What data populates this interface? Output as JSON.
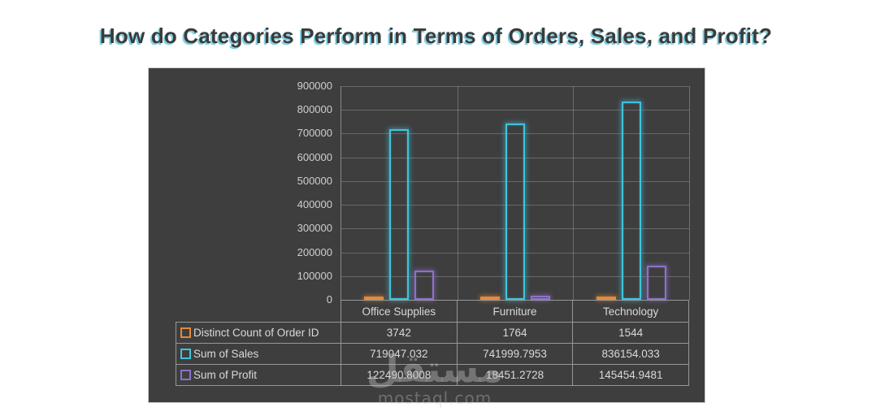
{
  "page": {
    "title": "How do Categories Perform in Terms of Orders, Sales, and Profit?"
  },
  "watermark": {
    "arabic": "مستقل",
    "domain": "mostaql.com"
  },
  "colors": {
    "chart_background": "#3E3E3E",
    "title_text": "#3B3B3B",
    "title_shadow": "#7FD1E4",
    "axis_text": "#CFCFCF",
    "table_text": "#D9D9D9",
    "table_border": "#979797",
    "series_orders": "#E38A3E",
    "series_sales": "#41C3DB",
    "series_profit": "#8D71C9"
  },
  "chart_data": {
    "type": "bar",
    "title": "How do Categories Perform in Terms of Orders, Sales, and Profit?",
    "categories": [
      "Office Supplies",
      "Furniture",
      "Technology"
    ],
    "series": [
      {
        "name": "Distinct Count of Order ID",
        "color": "#E38A3E",
        "values": [
          3742,
          1764,
          1544
        ],
        "labels": [
          "3742",
          "1764",
          "1544"
        ]
      },
      {
        "name": "Sum of Sales",
        "color": "#41C3DB",
        "values": [
          719047.032,
          741999.7953,
          836154.033
        ],
        "labels": [
          "719047.032",
          "741999.7953",
          "836154.033"
        ]
      },
      {
        "name": "Sum of Profit",
        "color": "#8D71C9",
        "values": [
          122490.8008,
          18451.2728,
          145454.9481
        ],
        "labels": [
          "122490.8008",
          "18451.2728",
          "145454.9481"
        ]
      }
    ],
    "y_axis": {
      "min": 0,
      "max": 900000,
      "step": 100000,
      "tick_labels": [
        "900000",
        "800000",
        "700000",
        "600000",
        "500000",
        "400000",
        "300000",
        "200000",
        "100000",
        "0"
      ]
    },
    "xlabel": "",
    "ylabel": "",
    "grid": true,
    "legend_position": "data-table-left-column",
    "bar_style": "hollow-outline-with-glow"
  }
}
